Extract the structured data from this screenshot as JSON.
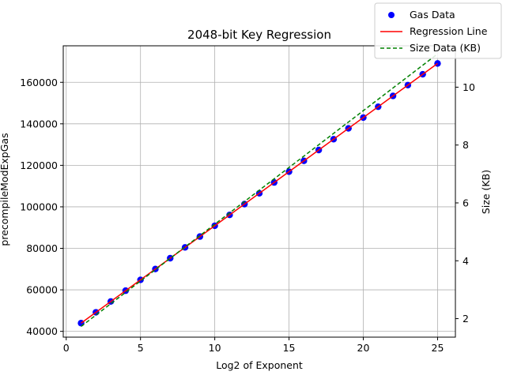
{
  "chart_data": {
    "type": "scatter",
    "title": "2048-bit Key Regression",
    "xlabel": "Log2 of Exponent",
    "ylabel": "precompileModExpGas",
    "y2label": "Size (KB)",
    "xlim": [
      -0.2,
      26.2
    ],
    "ylim": [
      37200,
      177600
    ],
    "y2lim": [
      1.36,
      11.43
    ],
    "xticks": [
      0,
      5,
      10,
      15,
      20,
      25
    ],
    "yticks": [
      40000,
      60000,
      80000,
      100000,
      120000,
      140000,
      160000
    ],
    "y2ticks": [
      2,
      4,
      6,
      8,
      10
    ],
    "grid": true,
    "legend": "top-right",
    "series": [
      {
        "name": "Gas Data",
        "kind": "scatter",
        "color": "#0000ff",
        "x": [
          1,
          2,
          3,
          4,
          5,
          6,
          7,
          8,
          9,
          10,
          11,
          12,
          13,
          14,
          15,
          16,
          17,
          18,
          19,
          20,
          21,
          22,
          23,
          24,
          25
        ],
        "values": [
          43965,
          49178,
          54392,
          59605,
          64818,
          70032,
          75245,
          80458,
          85672,
          90885,
          96098,
          101312,
          106525,
          111738,
          116952,
          122165,
          127378,
          132592,
          137805,
          143018,
          148232,
          153445,
          158658,
          163872,
          169085
        ]
      },
      {
        "name": "Regression Line",
        "kind": "line",
        "color": "#ff0000",
        "x": [
          1,
          25
        ],
        "values": [
          43965,
          169085
        ]
      },
      {
        "name": "Size Data (KB)",
        "kind": "dashed-line",
        "axis": "right",
        "color": "#008000",
        "x": [
          1,
          25
        ],
        "values": [
          1.73,
          11.15
        ]
      }
    ]
  }
}
